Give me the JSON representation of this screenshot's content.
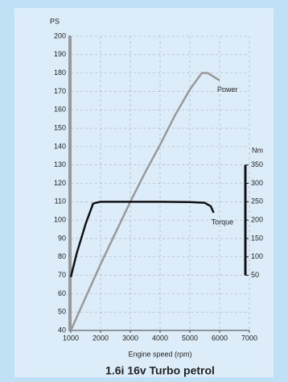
{
  "chart_data": {
    "type": "line",
    "title": "1.6i 16v Turbo petrol",
    "x_label": "Engine speed (rpm)",
    "y_label": "PS",
    "y2_label": "Nm",
    "xlim": [
      1000,
      7000
    ],
    "xticks": [
      1000,
      2000,
      3000,
      4000,
      5000,
      6000,
      7000
    ],
    "ylim": [
      40,
      200
    ],
    "yticks": [
      40,
      50,
      60,
      70,
      80,
      90,
      100,
      110,
      120,
      130,
      140,
      150,
      160,
      170,
      180,
      190,
      200
    ],
    "y2lim": [
      -100,
      700
    ],
    "y2ticks": [
      50,
      100,
      150,
      200,
      250,
      300,
      350
    ],
    "grid": true,
    "series": [
      {
        "name": "Power",
        "color": "#999999",
        "x": [
          1000,
          1500,
          2000,
          2500,
          3000,
          3500,
          4000,
          4500,
          5000,
          5400,
          5600,
          6000
        ],
        "values": [
          40,
          58,
          76,
          93,
          110,
          126,
          141,
          157,
          171,
          180,
          180,
          176
        ]
      },
      {
        "name": "Torque",
        "color": "#111111",
        "axis": "y2",
        "x": [
          1000,
          1200,
          1500,
          1750,
          2000,
          3000,
          4000,
          5000,
          5500,
          5700,
          5800
        ],
        "values": [
          45,
          110,
          190,
          245,
          250,
          250,
          250,
          249,
          247,
          238,
          220
        ]
      }
    ]
  }
}
